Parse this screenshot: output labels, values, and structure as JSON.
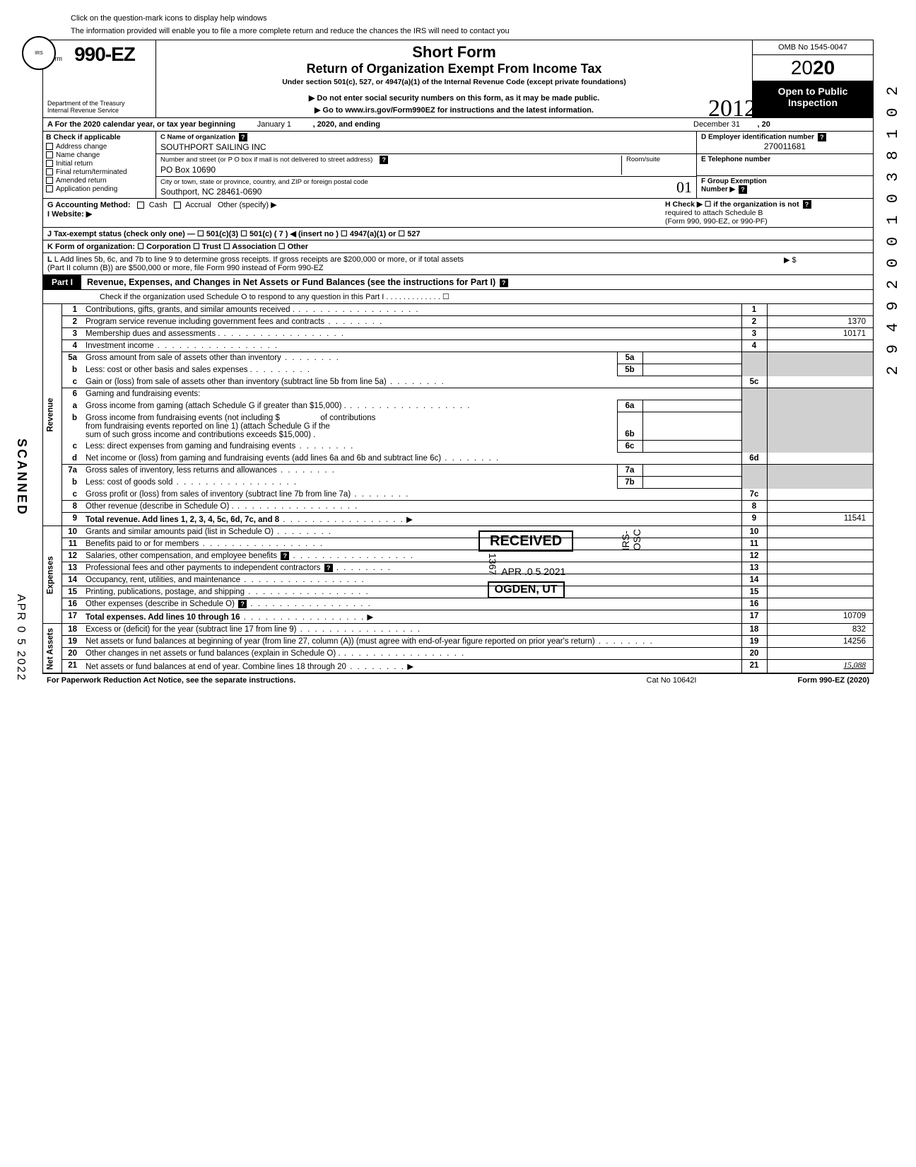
{
  "pretext_line1": "Click on the question-mark icons to display help windows",
  "pretext_line2": "The information provided will enable you to file a more complete return and reduce the chances the IRS will need to contact you",
  "header": {
    "form_label": "Form",
    "form_number": "990-EZ",
    "dept1": "Department of the Treasury",
    "dept2": "Internal Revenue Service",
    "title1": "Short Form",
    "title2": "Return of Organization Exempt From Income Tax",
    "subtitle": "Under section 501(c), 527, or 4947(a)(1) of the Internal Revenue Code (except private foundations)",
    "instr1": "Do not enter social security numbers on this form, as it may be made public.",
    "instr2": "Go to www.irs.gov/Form990EZ for instructions and the latest information.",
    "omb": "OMB No 1545-0047",
    "year_prefix": "2",
    "year_mid": "0",
    "year_bold": "20",
    "open_public1": "Open to Public",
    "open_public2": "Inspection",
    "hand_year": "2012"
  },
  "row_a": {
    "label_left": "A For the 2020 calendar year, or tax year beginning",
    "month_begin": "January 1",
    "mid": ", 2020, and ending",
    "month_end": "December 31",
    "suffix": ", 20"
  },
  "col_b": {
    "header": "B Check if applicable",
    "items": [
      "Address change",
      "Name change",
      "Initial return",
      "Final return/terminated",
      "Amended return",
      "Application pending"
    ]
  },
  "col_c": {
    "c_label": "C Name of organization",
    "c_value": "SOUTHPORT SAILING INC",
    "street_label": "Number and street (or P O  box if mail is not delivered to street address)",
    "street_value": "PO Box 10690",
    "room_label": "Room/suite",
    "city_label": "City or town, state or province, country, and ZIP or foreign postal code",
    "city_value": "Southport, NC 28461-0690"
  },
  "col_def": {
    "d_label": "D Employer identification number",
    "d_value": "270011681",
    "e_label": "E Telephone number",
    "e_value": "",
    "f_label": "F Group Exemption",
    "f_label2": "Number ▶"
  },
  "row_g": "G Accounting Method:",
  "row_g_opts": [
    "Cash",
    "Accrual",
    "Other (specify) ▶"
  ],
  "row_h1": "H Check ▶ ☐ if the organization is not",
  "row_h2": "required to attach Schedule B",
  "row_h3": "(Form 990, 990-EZ, or 990-PF)",
  "row_i": "I  Website: ▶",
  "row_j": "J Tax-exempt status (check only one) —  ☐ 501(c)(3)    ☐ 501(c) (   7   ) ◀ (insert no )  ☐ 4947(a)(1) or    ☐ 527",
  "row_k": "K Form of organization:    ☐ Corporation    ☐ Trust    ☐ Association    ☐ Other",
  "row_l1": "L Add lines 5b, 6c, and 7b to line 9 to determine gross receipts. If gross receipts are $200,000 or more, or if total assets",
  "row_l2": "(Part II column (B)) are $500,000 or more, file Form 990 instead of Form 990-EZ",
  "row_l_arrow": "▶   $",
  "part1": {
    "label": "Part I",
    "title": "Revenue, Expenses, and Changes in Net Assets or Fund Balances (see the instructions for Part I)",
    "checkline": "Check if the organization used Schedule O to respond to any question in this Part I  .   .   .   .   .   .   .   .   .   .   .   .   .  ☐"
  },
  "sections": {
    "revenue": "Revenue",
    "expenses": "Expenses",
    "netassets": "Net Assets"
  },
  "lines": {
    "l1": {
      "n": "1",
      "d": "Contributions, gifts, grants, and similar amounts received .",
      "rn": "1",
      "rv": ""
    },
    "l2": {
      "n": "2",
      "d": "Program service revenue including government fees and contracts",
      "rn": "2",
      "rv": "1370"
    },
    "l3": {
      "n": "3",
      "d": "Membership dues and assessments .",
      "rn": "3",
      "rv": "10171"
    },
    "l4": {
      "n": "4",
      "d": "Investment income",
      "rn": "4",
      "rv": ""
    },
    "l5a": {
      "n": "5a",
      "d": "Gross amount from sale of assets other than inventory",
      "bn": "5a",
      "bv": ""
    },
    "l5b": {
      "n": "b",
      "d": "Less: cost or other basis and sales expenses .",
      "bn": "5b",
      "bv": ""
    },
    "l5c": {
      "n": "c",
      "d": "Gain or (loss) from sale of assets other than inventory (subtract line 5b from line 5a)",
      "rn": "5c",
      "rv": ""
    },
    "l6": {
      "n": "6",
      "d": "Gaming and fundraising events:"
    },
    "l6a": {
      "n": "a",
      "d": "Gross income from gaming (attach Schedule G if greater than $15,000) .",
      "bn": "6a",
      "bv": ""
    },
    "l6b": {
      "n": "b",
      "d1": "Gross income from fundraising events (not including  $",
      "d2": "of contributions",
      "d3": "from fundraising events reported on line 1) (attach Schedule G if the",
      "d4": "sum of such gross income and contributions exceeds $15,000) .",
      "bn": "6b",
      "bv": ""
    },
    "l6c": {
      "n": "c",
      "d": "Less: direct expenses from gaming and fundraising events",
      "bn": "6c",
      "bv": ""
    },
    "l6d": {
      "n": "d",
      "d": "Net income or (loss) from gaming and fundraising events (add lines 6a and 6b and subtract line 6c)",
      "rn": "6d",
      "rv": ""
    },
    "l7a": {
      "n": "7a",
      "d": "Gross sales of inventory, less returns and allowances",
      "bn": "7a",
      "bv": ""
    },
    "l7b": {
      "n": "b",
      "d": "Less: cost of goods sold",
      "bn": "7b",
      "bv": ""
    },
    "l7c": {
      "n": "c",
      "d": "Gross profit or (loss) from sales of inventory (subtract line 7b from line 7a)",
      "rn": "7c",
      "rv": ""
    },
    "l8": {
      "n": "8",
      "d": "Other revenue (describe in Schedule O) .",
      "rn": "8",
      "rv": ""
    },
    "l9": {
      "n": "9",
      "d": "Total revenue. Add lines 1, 2, 3, 4, 5c, 6d, 7c, and 8",
      "rn": "9",
      "rv": "11541"
    },
    "l10": {
      "n": "10",
      "d": "Grants and similar amounts paid (list in Schedule O)",
      "rn": "10",
      "rv": ""
    },
    "l11": {
      "n": "11",
      "d": "Benefits paid to or for members",
      "rn": "11",
      "rv": ""
    },
    "l12": {
      "n": "12",
      "d": "Salaries, other compensation, and employee benefits",
      "rn": "12",
      "rv": ""
    },
    "l13": {
      "n": "13",
      "d": "Professional fees and other payments to independent contractors",
      "rn": "13",
      "rv": ""
    },
    "l14": {
      "n": "14",
      "d": "Occupancy, rent, utilities, and maintenance",
      "rn": "14",
      "rv": ""
    },
    "l15": {
      "n": "15",
      "d": "Printing, publications, postage, and shipping",
      "rn": "15",
      "rv": ""
    },
    "l16": {
      "n": "16",
      "d": "Other expenses (describe in Schedule O)",
      "rn": "16",
      "rv": ""
    },
    "l17": {
      "n": "17",
      "d": "Total expenses. Add lines 10 through 16",
      "rn": "17",
      "rv": "10709"
    },
    "l18": {
      "n": "18",
      "d": "Excess or (deficit) for the year (subtract line 17 from line 9)",
      "rn": "18",
      "rv": "832"
    },
    "l19": {
      "n": "19",
      "d": "Net assets or fund balances at beginning of year (from line 27, column (A)) (must agree with end-of-year figure reported on prior year's return)",
      "rn": "19",
      "rv": "14256"
    },
    "l20": {
      "n": "20",
      "d": "Other changes in net assets or fund balances (explain in Schedule O) .",
      "rn": "20",
      "rv": ""
    },
    "l21": {
      "n": "21",
      "d": "Net assets or fund balances at end of year. Combine lines 18 through 20",
      "rn": "21",
      "rv": "15,088"
    }
  },
  "footer": {
    "left": "For Paperwork Reduction Act Notice, see the separate instructions.",
    "mid": "Cat No 10642I",
    "right": "Form 990-EZ (2020)"
  },
  "stamps": {
    "scanned": "SCANNED",
    "scandate": "APR 0 5 2022",
    "seq": "2 9 4 9 2 0 0 1 0 3 8 1 0 2",
    "received": "RECEIVED",
    "recv_date": "APR .0 5 2021",
    "recv_city": "OGDEN, UT",
    "recv_side": "IRS-OSC",
    "recv_code": "1367"
  }
}
